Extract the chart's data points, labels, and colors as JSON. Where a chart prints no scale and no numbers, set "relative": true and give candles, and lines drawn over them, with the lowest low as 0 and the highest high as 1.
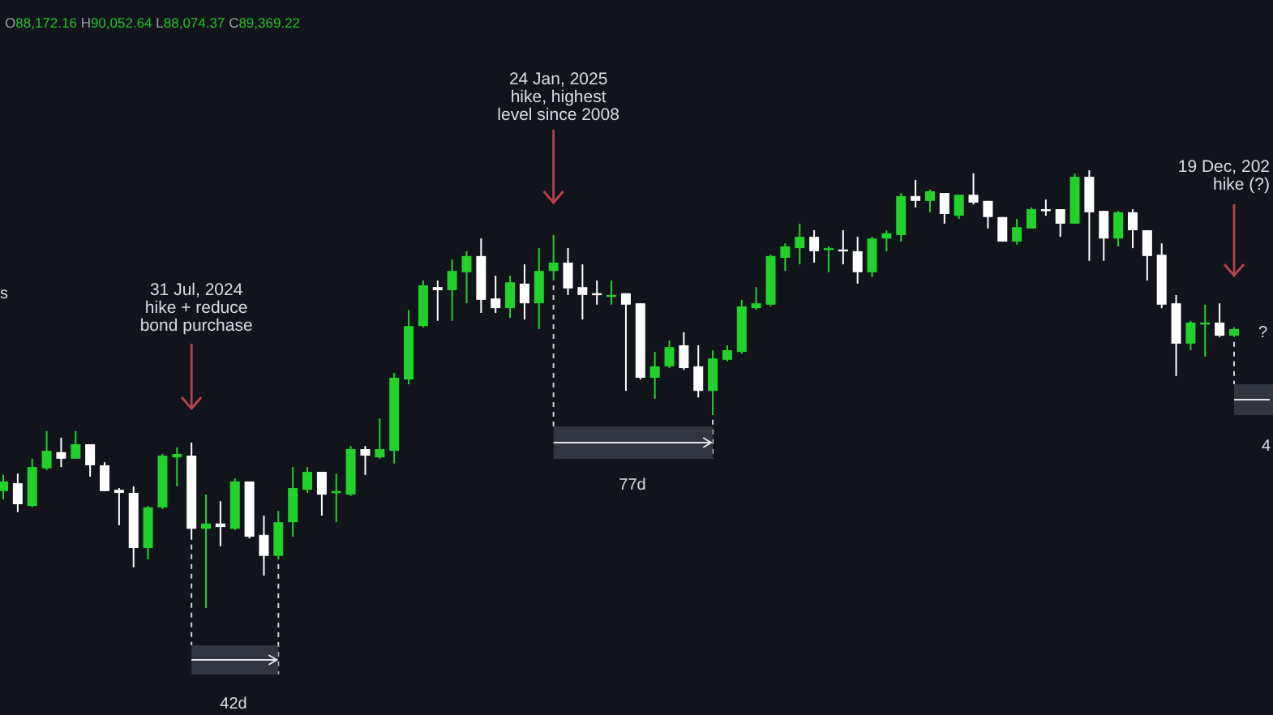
{
  "chart_data": {
    "type": "candlestick",
    "relative": true,
    "colors": [
      "#22d12b",
      "#ffffff",
      "#22d12b",
      "#22d12b",
      "#ffffff",
      "#22d12b",
      "#ffffff",
      "#ffffff",
      "#ffffff",
      "#ffffff",
      "#22d12b",
      "#22d12b",
      "#22d12b",
      "#ffffff",
      "#22d12b",
      "#ffffff",
      "#22d12b",
      "#ffffff",
      "#ffffff",
      "#22d12b",
      "#22d12b",
      "#22d12b",
      "#ffffff",
      "#22d12b",
      "#22d12b",
      "#ffffff",
      "#22d12b",
      "#22d12b",
      "#22d12b",
      "#22d12b",
      "#ffffff",
      "#22d12b",
      "#22d12b",
      "#ffffff",
      "#ffffff",
      "#22d12b",
      "#ffffff",
      "#22d12b",
      "#22d12b",
      "#ffffff",
      "#ffffff",
      "#ffffff",
      "#22d12b",
      "#ffffff",
      "#ffffff",
      "#22d12b",
      "#22d12b",
      "#ffffff",
      "#ffffff",
      "#22d12b",
      "#22d12b",
      "#22d12b",
      "#22d12b",
      "#22d12b",
      "#22d12b",
      "#22d12b",
      "#ffffff",
      "#22d12b",
      "#ffffff",
      "#ffffff",
      "#22d12b",
      "#22d12b",
      "#22d12b",
      "#ffffff",
      "#22d12b",
      "#ffffff",
      "#22d12b",
      "#ffffff",
      "#ffffff",
      "#ffffff",
      "#22d12b",
      "#22d12b",
      "#ffffff",
      "#ffffff",
      "#22d12b",
      "#ffffff",
      "#ffffff",
      "#22d12b",
      "#ffffff",
      "#ffffff",
      "#ffffff",
      "#ffffff",
      "#22d12b",
      "#22d12b",
      "#ffffff",
      "#22d12b"
    ],
    "annotations": [
      "O88,172.16 H90,052.64 L88,074.37 C89,369.22",
      "s",
      "31 Jul, 2024\nhike + reduce\nbond purchase",
      "24 Jan, 2025\nhike, highest\nlevel since 2008",
      "19 Dec, 202\nhike (?)",
      "?",
      "77d",
      "42d",
      "4"
    ],
    "categories": [
      null,
      null,
      null,
      null,
      null,
      null,
      null,
      null,
      null,
      null,
      null,
      null,
      null,
      null,
      null,
      null,
      null,
      null,
      null,
      null,
      null,
      null,
      null,
      null,
      null,
      null,
      null,
      null,
      null,
      null,
      null,
      null,
      null,
      null,
      null,
      null,
      null,
      null,
      null,
      null,
      null,
      null,
      null,
      null,
      null,
      null,
      null,
      null,
      null,
      null,
      null,
      null,
      null,
      null,
      null,
      null,
      null,
      null,
      null,
      null,
      null,
      null,
      null,
      null,
      null,
      null,
      null,
      null,
      null,
      null,
      null,
      null,
      null,
      null,
      null,
      null,
      null,
      null,
      null,
      null,
      null,
      null,
      null,
      null,
      null,
      null
    ],
    "ohlc": [
      [
        0.267,
        0.304,
        0.248,
        0.289
      ],
      [
        0.285,
        0.307,
        0.219,
        0.237
      ],
      [
        0.233,
        0.341,
        0.23,
        0.322
      ],
      [
        0.319,
        0.404,
        0.315,
        0.359
      ],
      [
        0.356,
        0.389,
        0.322,
        0.341
      ],
      [
        0.341,
        0.404,
        0.341,
        0.374
      ],
      [
        0.374,
        0.374,
        0.3,
        0.326
      ],
      [
        0.326,
        0.333,
        0.267,
        0.267
      ],
      [
        0.27,
        0.274,
        0.189,
        0.263
      ],
      [
        0.263,
        0.278,
        0.093,
        0.137
      ],
      [
        0.137,
        0.233,
        0.111,
        0.23
      ],
      [
        0.23,
        0.352,
        0.226,
        0.348
      ],
      [
        0.344,
        0.367,
        0.278,
        0.352
      ],
      [
        0.348,
        0.378,
        0.156,
        0.181
      ],
      [
        0.181,
        0.259,
        0,
        0.193
      ],
      [
        0.193,
        0.244,
        0.141,
        0.185
      ],
      [
        0.181,
        0.296,
        0.178,
        0.289
      ],
      [
        0.289,
        0.289,
        0.159,
        0.163
      ],
      [
        0.167,
        0.211,
        0.074,
        0.119
      ],
      [
        0.119,
        0.222,
        0.111,
        0.196
      ],
      [
        0.196,
        0.322,
        0.163,
        0.274
      ],
      [
        0.27,
        0.322,
        0.263,
        0.311
      ],
      [
        0.311,
        0.311,
        0.211,
        0.259
      ],
      [
        0.263,
        0.307,
        0.196,
        0.267
      ],
      [
        0.259,
        0.37,
        0.256,
        0.363
      ],
      [
        0.363,
        0.37,
        0.304,
        0.348
      ],
      [
        0.344,
        0.433,
        0.341,
        0.363
      ],
      [
        0.359,
        0.537,
        0.33,
        0.526
      ],
      [
        0.522,
        0.681,
        0.511,
        0.644
      ],
      [
        0.644,
        0.748,
        0.641,
        0.737
      ],
      [
        0.733,
        0.748,
        0.656,
        0.726
      ],
      [
        0.726,
        0.796,
        0.656,
        0.77
      ],
      [
        0.767,
        0.815,
        0.696,
        0.804
      ],
      [
        0.804,
        0.844,
        0.674,
        0.704
      ],
      [
        0.707,
        0.759,
        0.674,
        0.685
      ],
      [
        0.685,
        0.759,
        0.663,
        0.744
      ],
      [
        0.741,
        0.785,
        0.659,
        0.696
      ],
      [
        0.696,
        0.822,
        0.637,
        0.77
      ],
      [
        0.77,
        0.852,
        0.748,
        0.789
      ],
      [
        0.789,
        0.822,
        0.715,
        0.73
      ],
      [
        0.733,
        0.785,
        0.659,
        0.715
      ],
      [
        0.719,
        0.748,
        0.693,
        0.715
      ],
      [
        0.711,
        0.748,
        0.693,
        0.715
      ],
      [
        0.719,
        0.719,
        0.496,
        0.693
      ],
      [
        0.696,
        0.696,
        0.522,
        0.526
      ],
      [
        0.526,
        0.585,
        0.478,
        0.552
      ],
      [
        0.552,
        0.611,
        0.548,
        0.596
      ],
      [
        0.6,
        0.63,
        0.544,
        0.548
      ],
      [
        0.552,
        0.6,
        0.481,
        0.496
      ],
      [
        0.496,
        0.589,
        0.441,
        0.57
      ],
      [
        0.567,
        0.6,
        0.563,
        0.589
      ],
      [
        0.585,
        0.704,
        0.581,
        0.689
      ],
      [
        0.685,
        0.733,
        0.681,
        0.696
      ],
      [
        0.693,
        0.807,
        0.689,
        0.804
      ],
      [
        0.8,
        0.833,
        0.77,
        0.826
      ],
      [
        0.822,
        0.878,
        0.785,
        0.848
      ],
      [
        0.848,
        0.863,
        0.789,
        0.815
      ],
      [
        0.819,
        0.826,
        0.767,
        0.822
      ],
      [
        0.819,
        0.863,
        0.785,
        0.815
      ],
      [
        0.815,
        0.848,
        0.741,
        0.767
      ],
      [
        0.767,
        0.848,
        0.756,
        0.844
      ],
      [
        0.844,
        0.863,
        0.815,
        0.856
      ],
      [
        0.852,
        0.948,
        0.837,
        0.941
      ],
      [
        0.941,
        0.978,
        0.915,
        0.93
      ],
      [
        0.93,
        0.956,
        0.904,
        0.952
      ],
      [
        0.948,
        0.948,
        0.878,
        0.9
      ],
      [
        0.896,
        0.944,
        0.889,
        0.944
      ],
      [
        0.944,
        0.993,
        0.922,
        0.926
      ],
      [
        0.93,
        0.93,
        0.867,
        0.893
      ],
      [
        0.893,
        0.893,
        0.837,
        0.837
      ],
      [
        0.837,
        0.889,
        0.83,
        0.87
      ],
      [
        0.867,
        0.915,
        0.867,
        0.911
      ],
      [
        0.911,
        0.933,
        0.896,
        0.907
      ],
      [
        0.911,
        0.911,
        0.848,
        0.878
      ],
      [
        0.878,
        0.993,
        0.878,
        0.985
      ],
      [
        0.985,
        1,
        0.793,
        0.904
      ],
      [
        0.907,
        0.907,
        0.793,
        0.844
      ],
      [
        0.844,
        0.907,
        0.826,
        0.904
      ],
      [
        0.904,
        0.911,
        0.822,
        0.863
      ],
      [
        0.863,
        0.863,
        0.748,
        0.804
      ],
      [
        0.807,
        0.833,
        0.685,
        0.693
      ],
      [
        0.696,
        0.715,
        0.53,
        0.604
      ],
      [
        0.604,
        0.656,
        0.589,
        0.652
      ],
      [
        0.648,
        0.693,
        0.574,
        0.652
      ],
      [
        0.652,
        0.696,
        0.619,
        0.622
      ],
      [
        0.622,
        0.641,
        0.619,
        0.637
      ]
    ]
  }
}
